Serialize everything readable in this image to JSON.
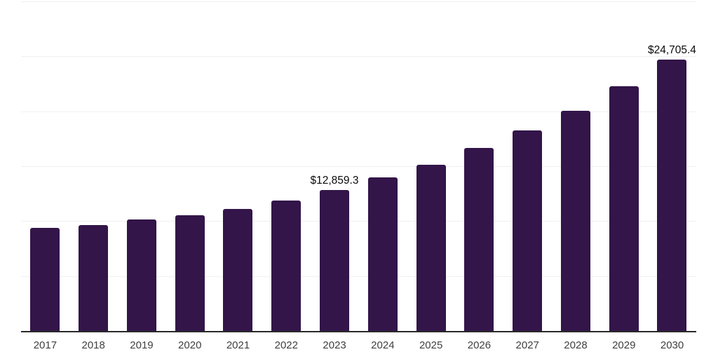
{
  "chart_data": {
    "type": "bar",
    "title": "",
    "xlabel": "",
    "ylabel": "",
    "categories": [
      "2017",
      "2018",
      "2019",
      "2020",
      "2021",
      "2022",
      "2023",
      "2024",
      "2025",
      "2026",
      "2027",
      "2028",
      "2029",
      "2030"
    ],
    "values": [
      9400,
      9650,
      10150,
      10550,
      11100,
      11900,
      12859.3,
      13950,
      15150,
      16650,
      18250,
      20050,
      22250,
      24705.4
    ],
    "point_labels": [
      "",
      "",
      "",
      "",
      "",
      "",
      "$12,859.3",
      "",
      "",
      "",
      "",
      "",
      "",
      "$24,705.4"
    ],
    "ylim": [
      0,
      30000
    ],
    "gridline_values": [
      5000,
      10000,
      15000,
      20000,
      25000,
      30000
    ],
    "grid": "horizontal",
    "legend": "none",
    "y_axis_tick_labels_visible": false,
    "colors": {
      "bar": "#331549",
      "gridline": "#f0f0f0",
      "axis_line": "#2a2a2a",
      "x_tick_text": "#404040",
      "data_label_text": "#0a0a0a",
      "background": "#ffffff"
    }
  }
}
